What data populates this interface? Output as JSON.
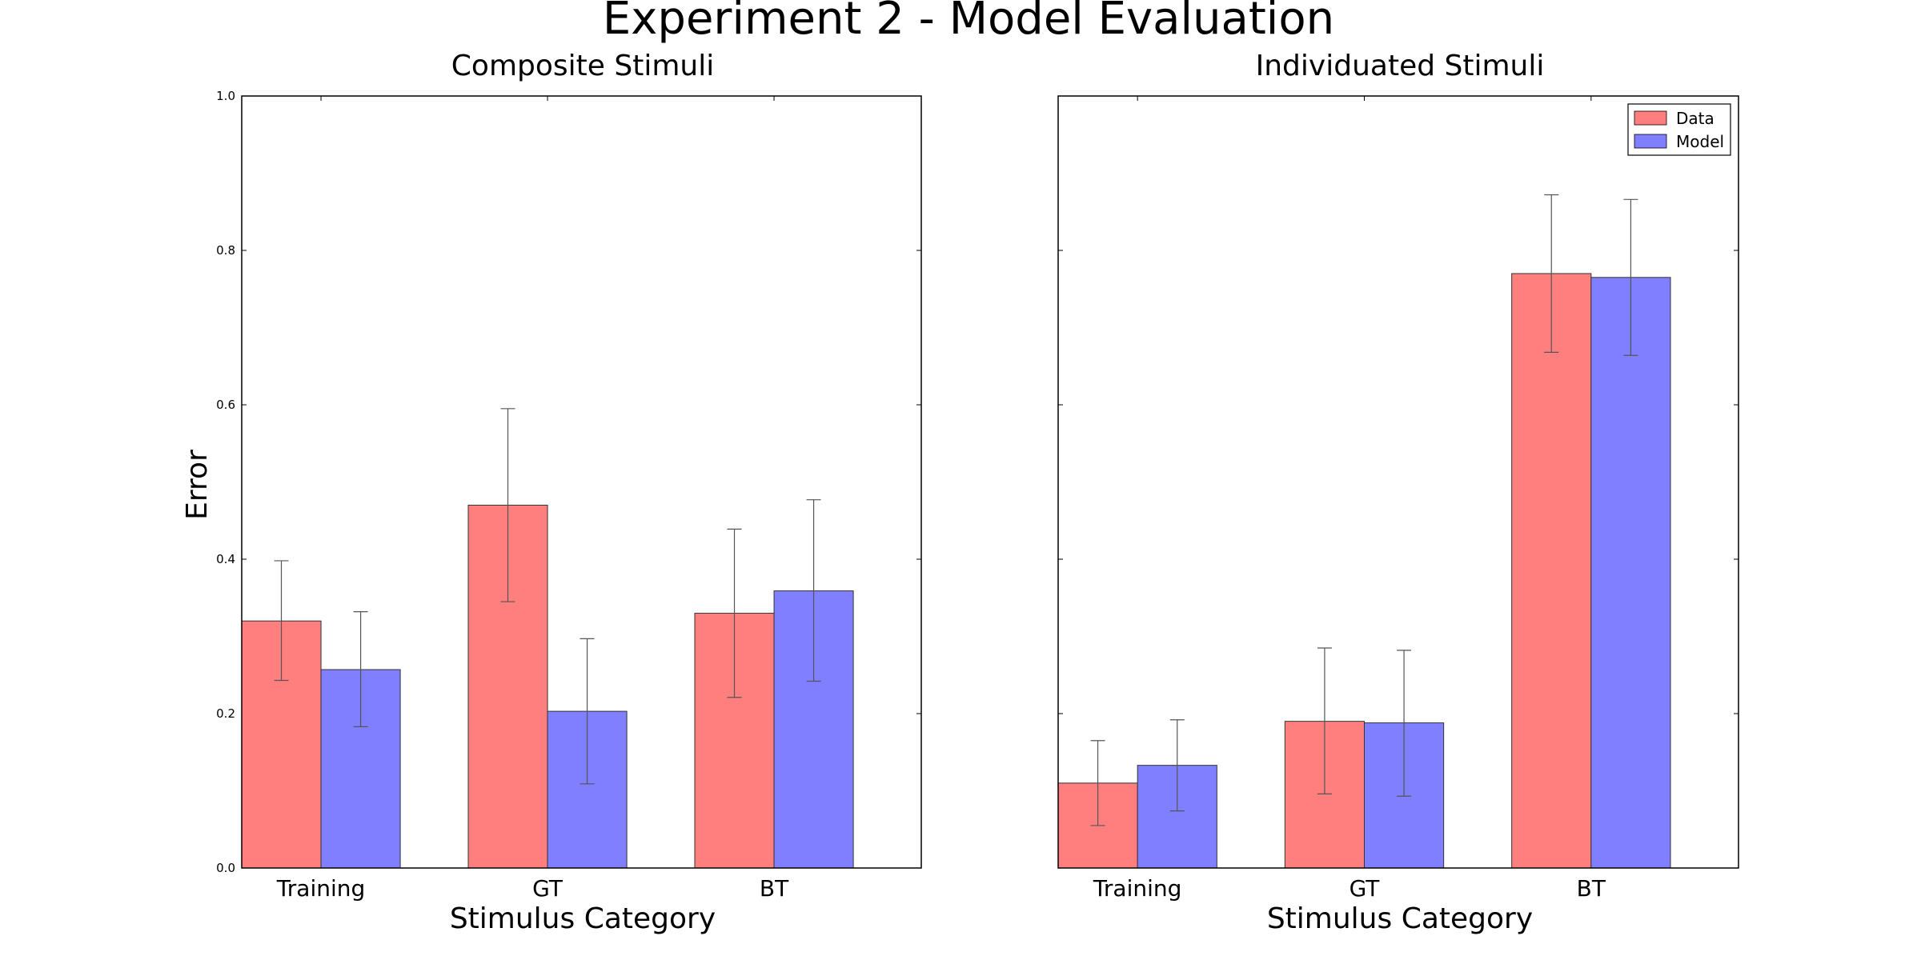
{
  "figure": {
    "title": "Experiment 2 - Model Evaluation"
  },
  "legend": {
    "placement": "top-right",
    "entries": [
      "Data",
      "Model"
    ]
  },
  "colors": {
    "data": "#ff7f7f",
    "model": "#7f7fff",
    "errorbar": "#555555",
    "axes": "#000000"
  },
  "chart_data": [
    {
      "type": "bar",
      "title": "Composite Stimuli",
      "xlabel": "Stimulus Category",
      "ylabel": "Error",
      "categories": [
        "Training",
        "GT",
        "BT"
      ],
      "ylim": [
        0,
        1.0
      ],
      "yticks": [
        "0.0",
        "0.2",
        "0.4",
        "0.6",
        "0.8",
        "1.0"
      ],
      "grid": false,
      "series": [
        {
          "name": "Data",
          "values": [
            0.32,
            0.47,
            0.33
          ],
          "err_low": [
            0.243,
            0.345,
            0.221
          ],
          "err_high": [
            0.398,
            0.595,
            0.439
          ]
        },
        {
          "name": "Model",
          "values": [
            0.257,
            0.203,
            0.359
          ],
          "err_low": [
            0.183,
            0.109,
            0.242
          ],
          "err_high": [
            0.332,
            0.297,
            0.477
          ]
        }
      ]
    },
    {
      "type": "bar",
      "title": "Individuated Stimuli",
      "xlabel": "Stimulus Category",
      "ylabel": "",
      "categories": [
        "Training",
        "GT",
        "BT"
      ],
      "ylim": [
        0,
        1.0
      ],
      "yticks": [],
      "grid": false,
      "series": [
        {
          "name": "Data",
          "values": [
            0.11,
            0.19,
            0.77
          ],
          "err_low": [
            0.055,
            0.096,
            0.668
          ],
          "err_high": [
            0.165,
            0.285,
            0.872
          ]
        },
        {
          "name": "Model",
          "values": [
            0.133,
            0.188,
            0.765
          ],
          "err_low": [
            0.074,
            0.093,
            0.664
          ],
          "err_high": [
            0.192,
            0.282,
            0.866
          ]
        }
      ]
    }
  ]
}
